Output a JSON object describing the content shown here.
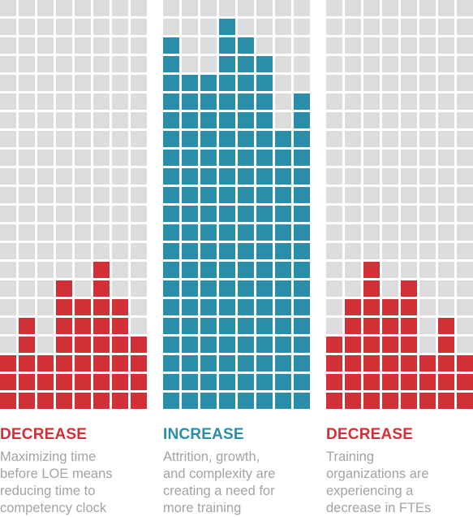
{
  "colors": {
    "empty": "#dcdcdc",
    "decrease": "#d32f37",
    "increase": "#2a8ea8"
  },
  "grid": {
    "rows": 22,
    "cols": 8
  },
  "chart_data": [
    {
      "type": "bar",
      "heading": "DECREASE",
      "description_lines": [
        "Maximizing time",
        "before LOE means",
        "reducing time to",
        "competency clock"
      ],
      "values": [
        3,
        5,
        3,
        7,
        6,
        8,
        6,
        4
      ],
      "color": "#d32f37"
    },
    {
      "type": "bar",
      "heading": "INCREASE",
      "description_lines": [
        "Attrition, growth,",
        "and complexity are",
        "creating a need for",
        "more training"
      ],
      "values": [
        20,
        18,
        18,
        21,
        20,
        19,
        15,
        17
      ],
      "color": "#2a8ea8"
    },
    {
      "type": "bar",
      "heading": "DECREASE",
      "description_lines": [
        "Training",
        "organizations are",
        "experiencing a",
        "decrease in FTEs"
      ],
      "values": [
        4,
        6,
        8,
        6,
        7,
        3,
        5,
        3
      ],
      "color": "#d32f37"
    }
  ]
}
